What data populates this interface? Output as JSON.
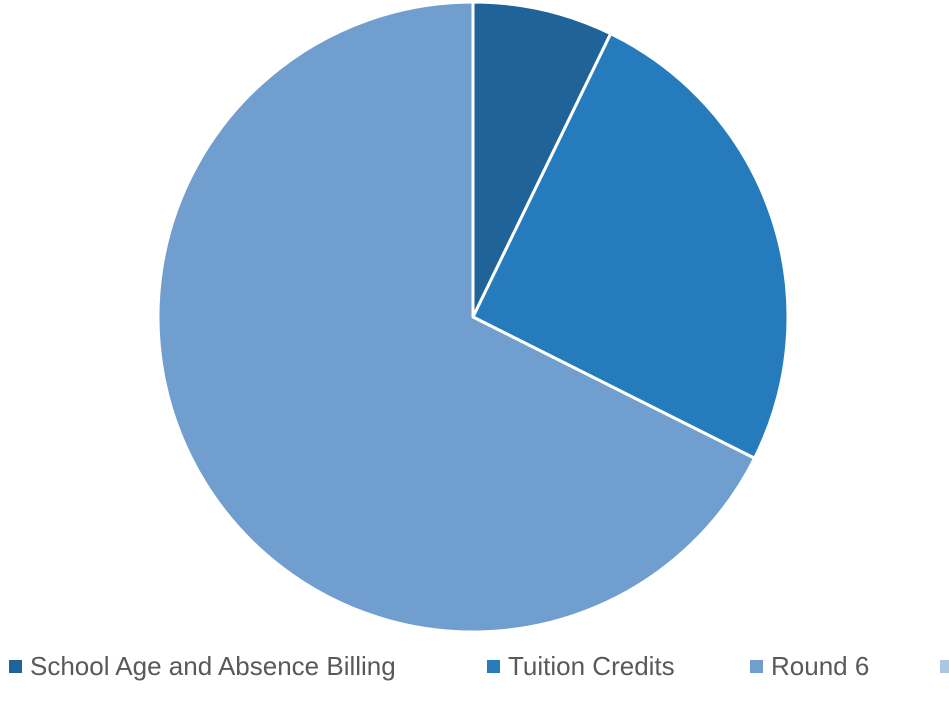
{
  "chart_data": {
    "type": "pie",
    "categories": [
      "School Age and Absence Billing",
      "Tuition Credits",
      "Round 6",
      ""
    ],
    "values": [
      7.2,
      25.2,
      67.6,
      0
    ],
    "colors": [
      "#1f6399",
      "#257bbb",
      "#6f9ecf",
      "#a9c6e3"
    ],
    "legend_position": "bottom",
    "start_angle_deg": 0,
    "direction": "clockwise"
  }
}
